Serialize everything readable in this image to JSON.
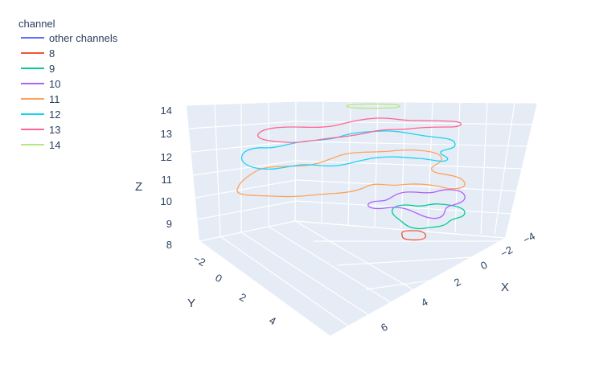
{
  "chart_data": {
    "type": "line",
    "kind": "3d-contour-lines",
    "legend": {
      "title": "channel",
      "placement": "top-left",
      "entries": [
        {
          "name": "other channels",
          "color": "#636efa"
        },
        {
          "name": "8",
          "color": "#EF553B"
        },
        {
          "name": "9",
          "color": "#00cc96"
        },
        {
          "name": "10",
          "color": "#ab63fa"
        },
        {
          "name": "11",
          "color": "#FFA15A"
        },
        {
          "name": "12",
          "color": "#19d3f3"
        },
        {
          "name": "13",
          "color": "#FF6692"
        },
        {
          "name": "14",
          "color": "#B6E880"
        }
      ]
    },
    "axes": {
      "x": {
        "title": "X",
        "range": [
          -4,
          6
        ],
        "ticks": [
          "−4",
          "−2",
          "0",
          "2",
          "4",
          "6"
        ]
      },
      "y": {
        "title": "Y",
        "range": [
          -2,
          4
        ],
        "ticks": [
          "−2",
          "0",
          "2",
          "4"
        ]
      },
      "z": {
        "title": "Z",
        "range": [
          8,
          14
        ],
        "ticks": [
          "8",
          "9",
          "10",
          "11",
          "12",
          "13",
          "14"
        ]
      }
    },
    "scene_background": "#e5ecf6",
    "grid": true,
    "series": [
      {
        "name": "8",
        "z": 8,
        "color": "#EF553B"
      },
      {
        "name": "9",
        "z": 9,
        "color": "#00cc96"
      },
      {
        "name": "10",
        "z": 10,
        "color": "#ab63fa"
      },
      {
        "name": "11",
        "z": 11,
        "color": "#FFA15A"
      },
      {
        "name": "12",
        "z": 12,
        "color": "#19d3f3"
      },
      {
        "name": "13",
        "z": 13,
        "color": "#FF6692"
      },
      {
        "name": "14",
        "z": 14,
        "color": "#B6E880"
      }
    ]
  }
}
